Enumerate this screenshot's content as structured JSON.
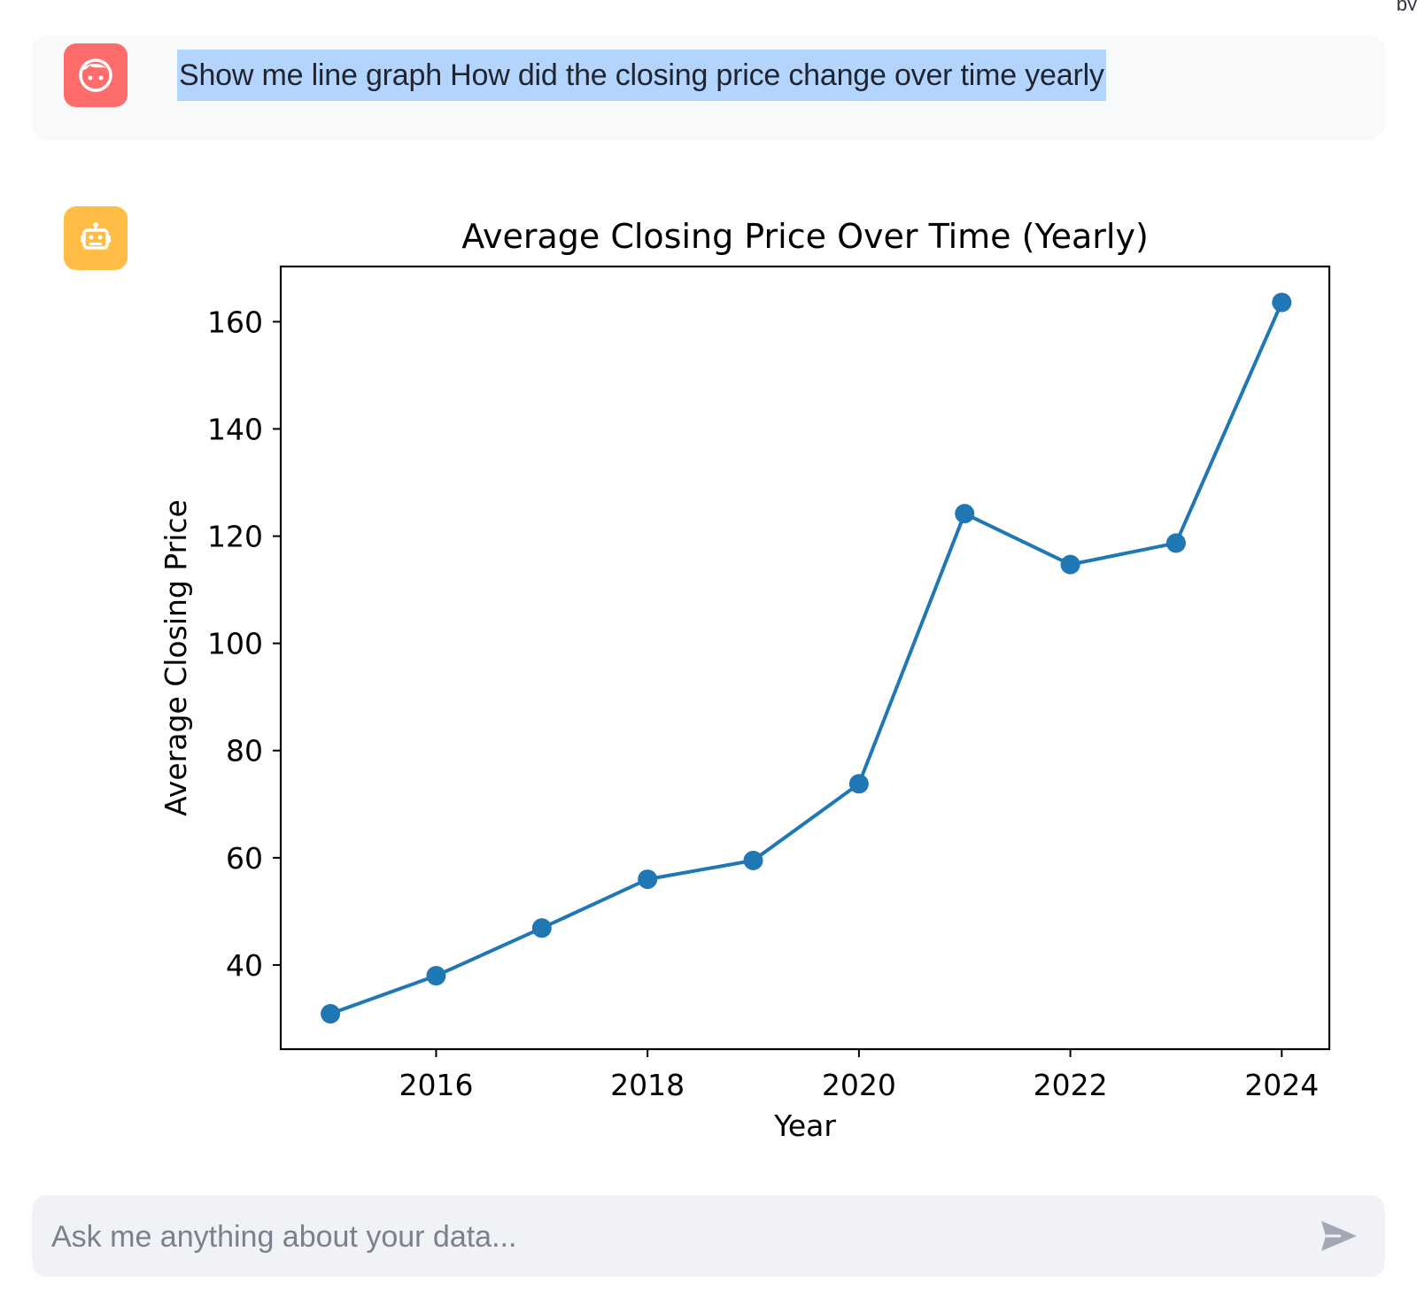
{
  "top_right": {
    "text": "py"
  },
  "user_message": {
    "text": "Show me line graph How did the closing price change over time yearly",
    "avatar_icon": "smile-face-icon",
    "avatar_color": "#ff6c6c"
  },
  "assistant_message": {
    "avatar_icon": "robot-icon",
    "avatar_color": "#ffbd45"
  },
  "chart_data": {
    "type": "line",
    "title": "Average Closing Price Over Time (Yearly)",
    "xlabel": "Year",
    "ylabel": "Average Closing Price",
    "x": [
      2015,
      2016,
      2017,
      2018,
      2019,
      2020,
      2021,
      2022,
      2023,
      2024
    ],
    "series": [
      {
        "values": [
          30.9,
          38.0,
          46.9,
          56.0,
          59.5,
          73.8,
          124.2,
          114.7,
          118.7,
          163.6
        ],
        "color": "#1f77b4",
        "marker": "circle"
      }
    ],
    "xticks": [
      "2016",
      "2018",
      "2020",
      "2022",
      "2024"
    ],
    "yticks": [
      "40",
      "60",
      "80",
      "100",
      "120",
      "140",
      "160"
    ],
    "xlim": [
      2014.53,
      2024.45
    ],
    "ylim": [
      24.3,
      170.3
    ],
    "grid": false
  },
  "chat_input": {
    "placeholder": "Ask me anything about your data...",
    "value": "",
    "send_icon": "send-icon"
  }
}
